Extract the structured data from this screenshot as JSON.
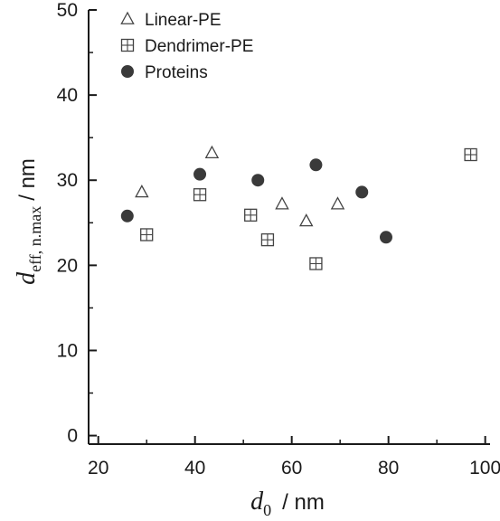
{
  "chart_data": {
    "type": "scatter",
    "xlabel": {
      "main": "d",
      "sub": "0",
      "unit": "/ nm"
    },
    "ylabel": {
      "main": "d",
      "sub": "eff, n.max",
      "unit": "/ nm"
    },
    "xlim": [
      18,
      101
    ],
    "ylim": [
      -1,
      50
    ],
    "xticks": [
      20,
      40,
      60,
      80,
      100
    ],
    "yticks": [
      0,
      10,
      20,
      30,
      40,
      50
    ],
    "grid": false,
    "legend_position": "top-left",
    "series": [
      {
        "name": "Linear-PE",
        "marker": "triangle-open",
        "color": "#444444",
        "points": [
          [
            29,
            28.6
          ],
          [
            43.5,
            33.2
          ],
          [
            58,
            27.2
          ],
          [
            63,
            25.2
          ],
          [
            69.5,
            27.2
          ]
        ]
      },
      {
        "name": "Dendrimer-PE",
        "marker": "square-plus-open",
        "color": "#444444",
        "points": [
          [
            30,
            23.6
          ],
          [
            41,
            28.3
          ],
          [
            51.5,
            25.9
          ],
          [
            55,
            23.0
          ],
          [
            65,
            20.2
          ],
          [
            97,
            33.0
          ]
        ]
      },
      {
        "name": "Proteins",
        "marker": "circle-filled",
        "color": "#3a3a3a",
        "points": [
          [
            26,
            25.8
          ],
          [
            41,
            30.7
          ],
          [
            53,
            30.0
          ],
          [
            65,
            31.8
          ],
          [
            74.5,
            28.6
          ],
          [
            79.5,
            23.3
          ]
        ]
      }
    ]
  }
}
